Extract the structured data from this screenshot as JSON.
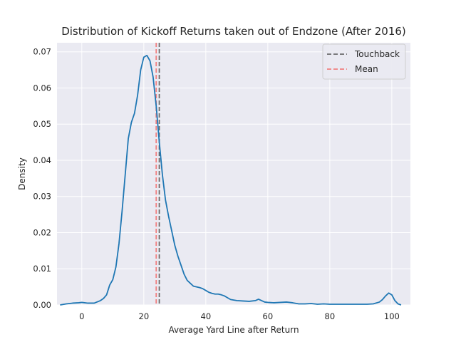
{
  "chart_data": {
    "type": "line",
    "title": "Distribution of Kickoff Returns taken out of Endzone (After 2016)",
    "xlabel": "Average Yard Line after Return",
    "ylabel": "Density",
    "xlim": [
      -8,
      106
    ],
    "ylim": [
      0,
      0.0725
    ],
    "xticks": [
      0,
      20,
      40,
      60,
      80,
      100
    ],
    "yticks": [
      0.0,
      0.01,
      0.02,
      0.03,
      0.04,
      0.05,
      0.06,
      0.07
    ],
    "ytick_labels": [
      "0.00",
      "0.01",
      "0.02",
      "0.03",
      "0.04",
      "0.05",
      "0.06",
      "0.07"
    ],
    "grid": true,
    "legend_position": "top-right",
    "colors": {
      "background": "#eaeaf2",
      "grid": "#ffffff",
      "density": "#1f77b4",
      "touchback": "#6b6b6b",
      "mean": "#f08080"
    },
    "series": [
      {
        "x": [
          -7,
          -5,
          -3,
          -1,
          0,
          2,
          4,
          6,
          7,
          8,
          9,
          10,
          11,
          12,
          13,
          14,
          15,
          16,
          17,
          18,
          19,
          20,
          21,
          22,
          23,
          24,
          25,
          26,
          27,
          28,
          29,
          30,
          31,
          32,
          33,
          34,
          35,
          36,
          37,
          38,
          39,
          40,
          41,
          42,
          43,
          44,
          45,
          46,
          47,
          48,
          50,
          52,
          54,
          56,
          57,
          58,
          59,
          60,
          62,
          64,
          66,
          68,
          70,
          72,
          74,
          76,
          78,
          80,
          82,
          84,
          86,
          88,
          90,
          92,
          94,
          96,
          97,
          98,
          99,
          100,
          101,
          102,
          103
        ],
        "values": [
          0.0,
          0.0003,
          0.0005,
          0.0006,
          0.0007,
          0.0005,
          0.0005,
          0.0012,
          0.0018,
          0.0028,
          0.0055,
          0.007,
          0.0105,
          0.017,
          0.026,
          0.036,
          0.046,
          0.0505,
          0.053,
          0.058,
          0.065,
          0.0685,
          0.069,
          0.0675,
          0.063,
          0.055,
          0.045,
          0.036,
          0.029,
          0.0245,
          0.0205,
          0.0165,
          0.0135,
          0.011,
          0.0085,
          0.0068,
          0.006,
          0.0052,
          0.005,
          0.0048,
          0.0045,
          0.004,
          0.0035,
          0.0032,
          0.003,
          0.003,
          0.0028,
          0.0025,
          0.002,
          0.0015,
          0.0012,
          0.0011,
          0.001,
          0.0012,
          0.0016,
          0.0012,
          0.0008,
          0.0007,
          0.0006,
          0.0007,
          0.0008,
          0.0006,
          0.0003,
          0.0003,
          0.0004,
          0.0002,
          0.0003,
          0.0002,
          0.0002,
          0.0002,
          0.0002,
          0.0002,
          0.0002,
          0.0002,
          0.0003,
          0.0008,
          0.0015,
          0.0025,
          0.0033,
          0.0028,
          0.0012,
          0.0003,
          0.0
        ]
      }
    ],
    "reference_lines": [
      {
        "name": "Touchback",
        "x": 25,
        "style": "dashed",
        "color": "#6b6b6b"
      },
      {
        "name": "Mean",
        "x": 24,
        "style": "dashed",
        "color": "#f08080"
      }
    ]
  }
}
